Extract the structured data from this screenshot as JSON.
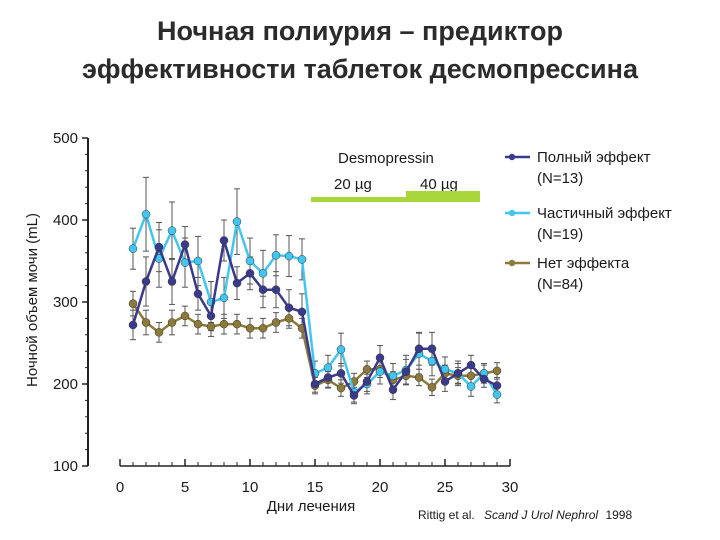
{
  "title_line1": "Ночная полиурия – предиктор",
  "title_line2": "эффективности таблеток десмопрессина",
  "chart_data": {
    "type": "line",
    "ylabel": "Ночной объем мочи (mL)",
    "xlabel": "Дни лечения",
    "ylim": [
      100,
      500
    ],
    "xlim": [
      0,
      30
    ],
    "yticks": [
      "100",
      "200",
      "300",
      "400",
      "500"
    ],
    "xticks": [
      "0",
      "5",
      "10",
      "15",
      "20",
      "25",
      "30"
    ],
    "dose_label": "Desmopressin",
    "dose_20": "20 µg",
    "dose_40": "40 µg",
    "dose_20_days": [
      15,
      22
    ],
    "dose_40_days": [
      22,
      28
    ],
    "x": [
      1,
      2,
      3,
      4,
      5,
      6,
      7,
      8,
      9,
      10,
      11,
      12,
      13,
      14,
      15,
      16,
      17,
      18,
      19,
      20,
      21,
      22,
      23,
      24,
      25,
      26,
      27,
      28,
      29
    ],
    "series": [
      {
        "name": "Полный эффект",
        "legend_line1": "Полный эффект",
        "legend_line2": "(N=13)",
        "color": "#3a3a8c",
        "values": [
          272,
          325,
          367,
          325,
          370,
          310,
          283,
          375,
          323,
          335,
          315,
          315,
          293,
          288,
          200,
          208,
          213,
          186,
          203,
          232,
          193,
          215,
          243,
          243,
          203,
          213,
          223,
          206,
          198
        ],
        "err": [
          18,
          30,
          30,
          28,
          22,
          20,
          18,
          25,
          20,
          20,
          22,
          22,
          22,
          22,
          10,
          12,
          12,
          10,
          12,
          15,
          12,
          15,
          20,
          20,
          12,
          12,
          12,
          10,
          10
        ]
      },
      {
        "name": "Частичный эффект",
        "legend_line1": "Частичный эффект",
        "legend_line2": "(N=19)",
        "color": "#42c6f0",
        "values": [
          365,
          407,
          353,
          387,
          348,
          350,
          300,
          305,
          398,
          350,
          335,
          357,
          356,
          352,
          213,
          220,
          242,
          190,
          200,
          215,
          210,
          217,
          237,
          228,
          218,
          213,
          197,
          213,
          187
        ],
        "err": [
          25,
          45,
          35,
          35,
          30,
          30,
          25,
          25,
          40,
          28,
          28,
          25,
          25,
          25,
          15,
          15,
          20,
          12,
          12,
          15,
          15,
          18,
          25,
          18,
          15,
          15,
          12,
          12,
          10
        ]
      },
      {
        "name": "Нет эффекта",
        "legend_line1": "Нет эффекта",
        "legend_line2": "(N=84)",
        "color": "#8c7a3a",
        "values": [
          298,
          275,
          263,
          275,
          283,
          273,
          270,
          273,
          273,
          268,
          268,
          275,
          280,
          268,
          198,
          205,
          195,
          203,
          218,
          218,
          205,
          210,
          208,
          196,
          213,
          210,
          210,
          213,
          216
        ],
        "err": [
          15,
          15,
          12,
          15,
          12,
          12,
          12,
          12,
          12,
          12,
          12,
          12,
          12,
          12,
          10,
          10,
          10,
          10,
          10,
          10,
          10,
          10,
          10,
          10,
          10,
          10,
          10,
          10,
          10
        ]
      }
    ],
    "source_authors": "Rittig et al.",
    "source_journal": "Scand J Urol Nephrol",
    "source_year": "1998"
  }
}
